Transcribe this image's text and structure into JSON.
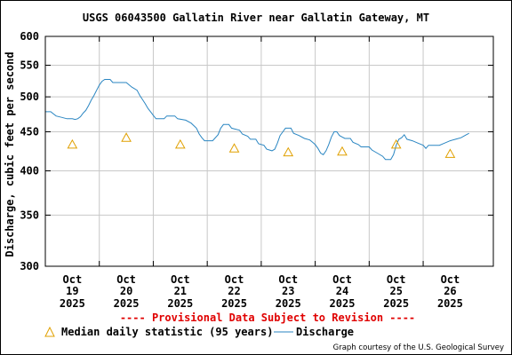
{
  "chart_data": {
    "type": "line",
    "title": "USGS 06043500 Gallatin River near Gallatin Gateway, MT",
    "ylabel": "Discharge, cubic feet per second",
    "xlabel": "",
    "y_scale": "log",
    "ylim": [
      300,
      600
    ],
    "y_ticks": [
      300,
      350,
      400,
      450,
      500,
      550,
      600
    ],
    "x_range": [
      18.5,
      26.8
    ],
    "x_ticks": [
      {
        "x": 19,
        "month": "Oct",
        "day": "19",
        "year": "2025"
      },
      {
        "x": 20,
        "month": "Oct",
        "day": "20",
        "year": "2025"
      },
      {
        "x": 21,
        "month": "Oct",
        "day": "21",
        "year": "2025"
      },
      {
        "x": 22,
        "month": "Oct",
        "day": "22",
        "year": "2025"
      },
      {
        "x": 23,
        "month": "Oct",
        "day": "23",
        "year": "2025"
      },
      {
        "x": 24,
        "month": "Oct",
        "day": "24",
        "year": "2025"
      },
      {
        "x": 25,
        "month": "Oct",
        "day": "25",
        "year": "2025"
      },
      {
        "x": 26,
        "month": "Oct",
        "day": "26",
        "year": "2025"
      }
    ],
    "grid": true,
    "legend_position": "bottom",
    "provisional_note": "---- Provisional Data Subject to Revision ----",
    "credit": "Graph courtesy of the U.S. Geological Survey",
    "series": [
      {
        "name": "Discharge",
        "color": "#2a86c2",
        "style": "line",
        "points": [
          [
            18.5,
            478
          ],
          [
            18.6,
            478
          ],
          [
            18.7,
            472
          ],
          [
            18.8,
            470
          ],
          [
            18.9,
            468
          ],
          [
            19.0,
            468
          ],
          [
            19.05,
            467
          ],
          [
            19.1,
            468
          ],
          [
            19.15,
            471
          ],
          [
            19.2,
            476
          ],
          [
            19.25,
            480
          ],
          [
            19.3,
            487
          ],
          [
            19.35,
            495
          ],
          [
            19.4,
            502
          ],
          [
            19.45,
            510
          ],
          [
            19.5,
            518
          ],
          [
            19.55,
            524
          ],
          [
            19.6,
            527
          ],
          [
            19.7,
            527
          ],
          [
            19.75,
            522
          ],
          [
            20.0,
            522
          ],
          [
            20.1,
            515
          ],
          [
            20.2,
            510
          ],
          [
            20.25,
            502
          ],
          [
            20.3,
            496
          ],
          [
            20.35,
            490
          ],
          [
            20.4,
            483
          ],
          [
            20.45,
            478
          ],
          [
            20.5,
            473
          ],
          [
            20.55,
            468
          ],
          [
            20.7,
            468
          ],
          [
            20.75,
            472
          ],
          [
            20.9,
            472
          ],
          [
            20.95,
            468
          ],
          [
            21.1,
            466
          ],
          [
            21.2,
            462
          ],
          [
            21.3,
            455
          ],
          [
            21.35,
            447
          ],
          [
            21.4,
            442
          ],
          [
            21.45,
            438
          ],
          [
            21.6,
            438
          ],
          [
            21.7,
            446
          ],
          [
            21.75,
            455
          ],
          [
            21.8,
            460
          ],
          [
            21.9,
            460
          ],
          [
            21.95,
            455
          ],
          [
            22.1,
            452
          ],
          [
            22.15,
            447
          ],
          [
            22.25,
            444
          ],
          [
            22.3,
            440
          ],
          [
            22.4,
            440
          ],
          [
            22.45,
            434
          ],
          [
            22.55,
            432
          ],
          [
            22.6,
            427
          ],
          [
            22.7,
            425
          ],
          [
            22.75,
            427
          ],
          [
            22.8,
            435
          ],
          [
            22.85,
            445
          ],
          [
            22.9,
            450
          ],
          [
            22.95,
            455
          ],
          [
            23.05,
            455
          ],
          [
            23.1,
            448
          ],
          [
            23.2,
            445
          ],
          [
            23.3,
            441
          ],
          [
            23.4,
            439
          ],
          [
            23.45,
            436
          ],
          [
            23.5,
            433
          ],
          [
            23.55,
            428
          ],
          [
            23.6,
            422
          ],
          [
            23.65,
            420
          ],
          [
            23.7,
            425
          ],
          [
            23.75,
            433
          ],
          [
            23.8,
            443
          ],
          [
            23.85,
            450
          ],
          [
            23.9,
            450
          ],
          [
            23.95,
            445
          ],
          [
            24.0,
            443
          ],
          [
            24.05,
            441
          ],
          [
            24.15,
            441
          ],
          [
            24.2,
            436
          ],
          [
            24.3,
            433
          ],
          [
            24.35,
            430
          ],
          [
            24.5,
            430
          ],
          [
            24.55,
            426
          ],
          [
            24.65,
            422
          ],
          [
            24.75,
            418
          ],
          [
            24.8,
            414
          ],
          [
            24.9,
            414
          ],
          [
            24.95,
            420
          ],
          [
            25.0,
            432
          ],
          [
            25.05,
            440
          ],
          [
            25.1,
            442
          ],
          [
            25.15,
            446
          ],
          [
            25.2,
            440
          ],
          [
            25.3,
            438
          ],
          [
            25.4,
            435
          ],
          [
            25.5,
            432
          ],
          [
            25.55,
            428
          ],
          [
            25.6,
            432
          ],
          [
            25.8,
            432
          ],
          [
            25.9,
            435
          ],
          [
            26.0,
            438
          ],
          [
            26.1,
            440
          ],
          [
            26.2,
            442
          ],
          [
            26.3,
            446
          ],
          [
            26.35,
            448
          ]
        ]
      },
      {
        "name": "Median daily statistic (95 years)",
        "color": "#e0a000",
        "style": "triangle",
        "points": [
          [
            19.0,
            433
          ],
          [
            20.0,
            442
          ],
          [
            21.0,
            433
          ],
          [
            22.0,
            428
          ],
          [
            23.0,
            423
          ],
          [
            24.0,
            424
          ],
          [
            25.0,
            433
          ],
          [
            26.0,
            421
          ]
        ]
      }
    ]
  }
}
